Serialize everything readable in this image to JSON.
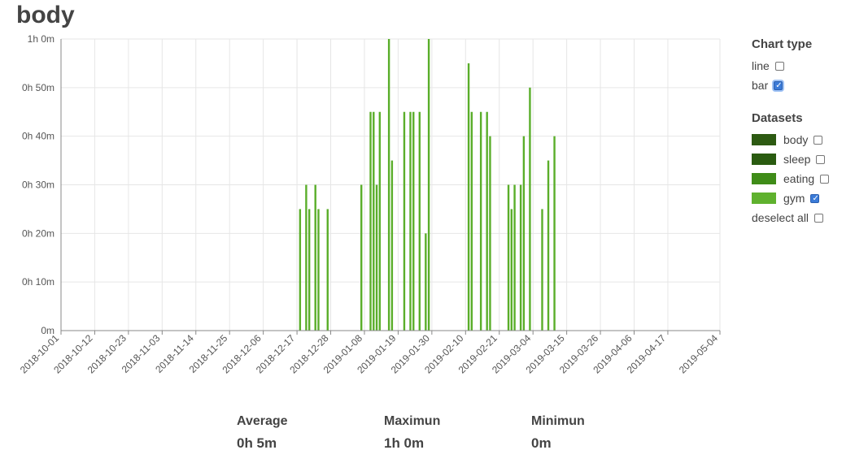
{
  "page": {
    "title": "body"
  },
  "chart_data": {
    "type": "bar",
    "y_unit": "minutes",
    "ylim": [
      0,
      60
    ],
    "y_ticks": [
      0,
      10,
      20,
      30,
      40,
      50,
      60
    ],
    "y_tick_labels": [
      "0m",
      "0h 10m",
      "0h 20m",
      "0h 30m",
      "0h 40m",
      "0h 50m",
      "1h 0m"
    ],
    "x_range": [
      "2018-10-01",
      "2019-05-04"
    ],
    "x_tick_labels": [
      "2018-10-01",
      "2018-10-12",
      "2018-10-23",
      "2018-11-03",
      "2018-11-14",
      "2018-11-25",
      "2018-12-06",
      "2018-12-17",
      "2018-12-28",
      "2019-01-08",
      "2019-01-19",
      "2019-01-30",
      "2019-02-10",
      "2019-02-21",
      "2019-03-04",
      "2019-03-15",
      "2019-03-26",
      "2019-04-06",
      "2019-04-17",
      "2019-05-04"
    ],
    "grid": true,
    "series": [
      {
        "name": "gym",
        "color": "#5aae2a",
        "points": [
          {
            "x": "2018-12-18",
            "y": 25
          },
          {
            "x": "2018-12-20",
            "y": 30
          },
          {
            "x": "2018-12-21",
            "y": 25
          },
          {
            "x": "2018-12-23",
            "y": 30
          },
          {
            "x": "2018-12-24",
            "y": 25
          },
          {
            "x": "2018-12-27",
            "y": 25
          },
          {
            "x": "2019-01-07",
            "y": 30
          },
          {
            "x": "2019-01-10",
            "y": 45
          },
          {
            "x": "2019-01-11",
            "y": 45
          },
          {
            "x": "2019-01-12",
            "y": 30
          },
          {
            "x": "2019-01-13",
            "y": 45
          },
          {
            "x": "2019-01-16",
            "y": 60
          },
          {
            "x": "2019-01-17",
            "y": 35
          },
          {
            "x": "2019-01-21",
            "y": 45
          },
          {
            "x": "2019-01-23",
            "y": 45
          },
          {
            "x": "2019-01-24",
            "y": 45
          },
          {
            "x": "2019-01-26",
            "y": 45
          },
          {
            "x": "2019-01-28",
            "y": 20
          },
          {
            "x": "2019-01-29",
            "y": 60
          },
          {
            "x": "2019-02-11",
            "y": 55
          },
          {
            "x": "2019-02-12",
            "y": 45
          },
          {
            "x": "2019-02-15",
            "y": 45
          },
          {
            "x": "2019-02-17",
            "y": 45
          },
          {
            "x": "2019-02-18",
            "y": 40
          },
          {
            "x": "2019-02-24",
            "y": 30
          },
          {
            "x": "2019-02-25",
            "y": 25
          },
          {
            "x": "2019-02-26",
            "y": 30
          },
          {
            "x": "2019-02-28",
            "y": 30
          },
          {
            "x": "2019-03-01",
            "y": 40
          },
          {
            "x": "2019-03-03",
            "y": 50
          },
          {
            "x": "2019-03-07",
            "y": 25
          },
          {
            "x": "2019-03-09",
            "y": 35
          },
          {
            "x": "2019-03-11",
            "y": 40
          }
        ]
      }
    ]
  },
  "controls": {
    "chart_type": {
      "title": "Chart type",
      "options": [
        {
          "label": "line",
          "checked": false
        },
        {
          "label": "bar",
          "checked": true
        }
      ]
    },
    "datasets": {
      "title": "Datasets",
      "items": [
        {
          "label": "body",
          "color": "#2d5a12",
          "checked": false
        },
        {
          "label": "sleep",
          "color": "#2a5b10",
          "checked": false
        },
        {
          "label": "eating",
          "color": "#3f8c18",
          "checked": false
        },
        {
          "label": "gym",
          "color": "#5fb12e",
          "checked": true
        }
      ],
      "deselect_label": "deselect all"
    }
  },
  "stats": {
    "average": {
      "label": "Average",
      "value": "0h 5m"
    },
    "maximum": {
      "label": "Maximun",
      "value": "1h 0m"
    },
    "minimum": {
      "label": "Minimun",
      "value": "0m"
    }
  }
}
